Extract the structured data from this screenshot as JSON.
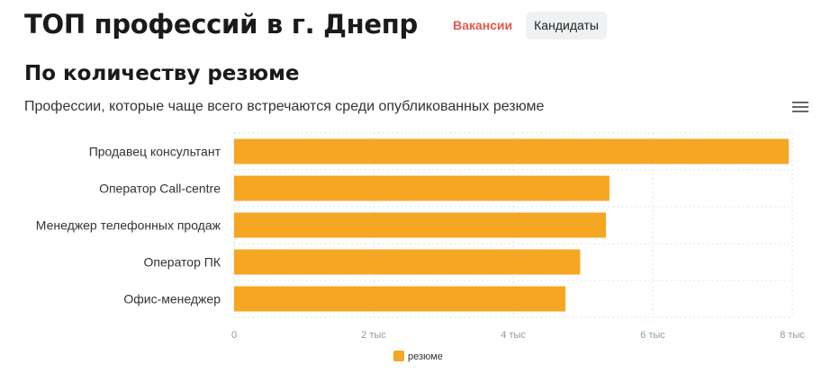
{
  "header": {
    "title": "ТОП профессий в г. Днепр",
    "tabs": [
      {
        "label": "Вакансии",
        "active": true
      },
      {
        "label": "Кандидаты",
        "active": false
      }
    ]
  },
  "section": {
    "title": "По количеству резюме",
    "subtitle": "Профессии, которые чаще всего встречаются среди опубликованных резюме",
    "menu_icon": "hamburger-menu-icon"
  },
  "colors": {
    "bar": "#f5a623",
    "active_tab": "#e05a4d",
    "grid": "#dde3e8"
  },
  "chart_data": {
    "type": "bar",
    "orientation": "horizontal",
    "categories": [
      "Продавец консультант",
      "Оператор Call-centre",
      "Менеджер телефонных продаж",
      "Оператор ПК",
      "Офис-менеджер"
    ],
    "series": [
      {
        "name": "резюме",
        "values": [
          7950,
          5380,
          5330,
          4960,
          4750
        ]
      }
    ],
    "xlim": [
      0,
      8000
    ],
    "xticks": [
      0,
      2000,
      4000,
      6000,
      8000
    ],
    "xtick_labels": [
      "0",
      "2 тыс",
      "4 тыс",
      "6 тыс",
      "8 тыс"
    ],
    "grid": true,
    "legend": "bottom-center"
  }
}
